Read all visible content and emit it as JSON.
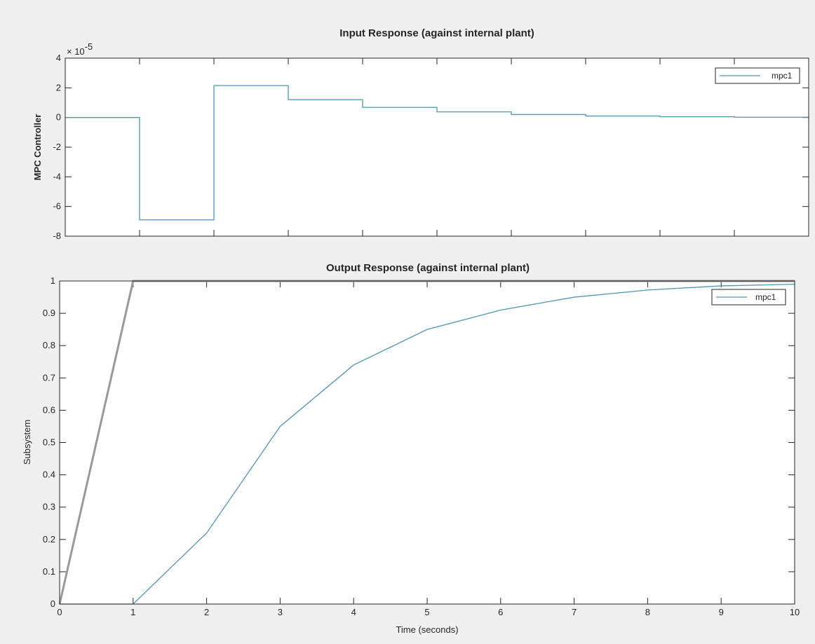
{
  "chart_data": [
    {
      "type": "line",
      "title": "Input Response (against internal plant)",
      "xlabel": "",
      "ylabel": "MPC Controller",
      "exponent_label": "× 10",
      "exponent_power": "-5",
      "xlim": [
        0,
        10
      ],
      "ylim": [
        -8,
        4
      ],
      "yscale_factor": 1e-05,
      "yticks": [
        4,
        2,
        0,
        -2,
        -4,
        -6,
        -8
      ],
      "xticks": [
        0,
        1,
        2,
        3,
        4,
        5,
        6,
        7,
        8,
        9,
        10
      ],
      "grid": false,
      "legend_placement": "top-right",
      "color": "#4f95b8",
      "series": [
        {
          "name": "mpc1",
          "step": true,
          "x": [
            0,
            1,
            2,
            3,
            4,
            5,
            6,
            7,
            8,
            9,
            10
          ],
          "y": [
            0,
            -6.9,
            2.15,
            1.2,
            0.68,
            0.38,
            0.2,
            0.1,
            0.05,
            0.02,
            0.01
          ]
        }
      ]
    },
    {
      "type": "line",
      "title": "Output Response (against internal plant)",
      "xlabel": "Time (seconds)",
      "ylabel": "Subsystem",
      "xlim": [
        0,
        10
      ],
      "ylim": [
        0,
        1
      ],
      "yticks": [
        1,
        0.9,
        0.8,
        0.7,
        0.6,
        0.5,
        0.4,
        0.3,
        0.2,
        0.1,
        0
      ],
      "xticks": [
        0,
        1,
        2,
        3,
        4,
        5,
        6,
        7,
        8,
        9,
        10
      ],
      "grid": false,
      "legend_placement": "top-right",
      "reference": {
        "color": "#999999",
        "x": [
          0,
          1,
          10
        ],
        "y": [
          0,
          1,
          1
        ]
      },
      "series": [
        {
          "name": "mpc1",
          "color": "#4f95b8",
          "x": [
            0,
            1,
            2,
            3,
            4,
            5,
            6,
            7,
            8,
            9,
            10
          ],
          "y": [
            0,
            0,
            0.22,
            0.55,
            0.74,
            0.85,
            0.91,
            0.95,
            0.972,
            0.985,
            0.99
          ]
        }
      ]
    }
  ]
}
